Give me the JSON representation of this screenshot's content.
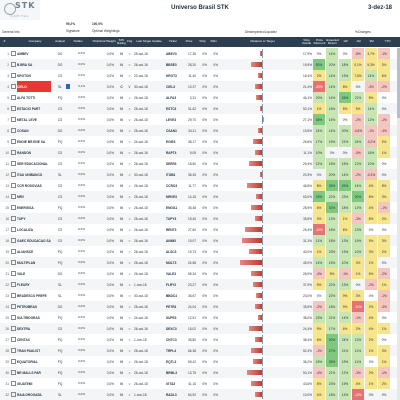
{
  "app": {
    "logo_text": "STK",
    "logo_sub": "CAPITAL",
    "title": "Universo Brasil STK",
    "date": "3-dez-18"
  },
  "scope": {
    "general_info": "General Info",
    "sig_pct": "99,2%",
    "sig_label": "Signature",
    "wt_pct": "100,0%",
    "wt_label": "Optimal Weightings",
    "comp_label": "Desempenho/Liquidez",
    "changes_label": "%Changes"
  },
  "columns": [
    "#",
    "",
    "Company",
    "Analyst",
    "%Alloc",
    "%Optimal Weight",
    "STK Rating",
    "Chg",
    "Last Target Update",
    "Ticker",
    "Price",
    "%Up",
    "%Dn",
    "",
    "Distance to Target",
    "%Up Upside",
    "Price Discount",
    "Expected Return",
    "1W",
    "1M",
    "3M",
    "YTD"
  ],
  "rows": [
    {
      "rank": "1",
      "company": "AMBEV",
      "analyst": "DG",
      "sign": "0,0%",
      "sign_frac": 0.0,
      "wt": "0,0%",
      "wt_frac": 0.0,
      "rating": "N",
      "chg": "=",
      "update": "25-out-18",
      "ticker": "ABEV3",
      "price": "17,35",
      "pct": "0%",
      "pct2": "0%",
      "bar": -0.05,
      "dist": "17,9%",
      "c1": "0%",
      "c2": "14%",
      "c3": "0%",
      "c4": "-8%",
      "c5": "3,7%",
      "c6": "-1%"
    },
    {
      "rank": "2",
      "company": "B.BRA SA",
      "analyst": "DG",
      "sign": "0,0%",
      "sign_frac": 0.0,
      "wt": "0,0%",
      "wt_frac": 0.0,
      "rating": "N",
      "chg": "=",
      "update": "26-out-18",
      "ticker": "BBSE3",
      "price": "28,20",
      "pct": "0%",
      "pct2": "0%",
      "bar": -0.3,
      "dist": "19,9%",
      "c1": "50%",
      "c2": "20%",
      "c3": "18%",
      "c4": "0,1%",
      "c5": "5,3%",
      "c6": "3%"
    },
    {
      "rank": "3",
      "company": "KROTON",
      "analyst": "CS",
      "sign": "0,0%",
      "sign_frac": 0.0,
      "wt": "0,0%",
      "wt_frac": 0.0,
      "rating": "N",
      "chg": "=",
      "update": "22-out-18",
      "ticker": "KROT3",
      "price": "11,40",
      "pct": "0%",
      "pct2": "0%",
      "bar": -0.1,
      "dist": "16,4%",
      "c1": "2%",
      "c2": "14%",
      "c3": "13%",
      "c4": "7,6%",
      "c5": "14%",
      "c6": "6%"
    },
    {
      "rank": "4",
      "company": "CIELO",
      "analyst": "SL",
      "sign": "3,1%",
      "sign_frac": 0.22,
      "wt": "0,0%",
      "wt_frac": 0.0,
      "rating": "C",
      "chg": "V",
      "update": "30-out-18",
      "ticker": "CIEL3",
      "price": "10,37",
      "pct": "0%",
      "pct2": "0%",
      "bar": -0.2,
      "dist": "21,4%",
      "c1": "-23%",
      "c2": "14%",
      "c3": "8%",
      "c4": "0%",
      "c5": "-3%",
      "c6": "-2%",
      "highlight": true
    },
    {
      "rank": "5",
      "company": "ALFA TOTTI",
      "analyst": "PQ",
      "sign": "0,0%",
      "sign_frac": 0.0,
      "wt": "0,0%",
      "wt_frac": 0.0,
      "rating": "N",
      "chg": "=",
      "update": "26-out-18",
      "ticker": "ALFA3",
      "price": "3,31",
      "pct": "0%",
      "pct2": "0%",
      "bar": -0.15,
      "dist": "46,1%",
      "c1": "20%",
      "c2": "14%",
      "c3": "26%",
      "c4": "21%",
      "c5": "8%",
      "c6": "0%"
    },
    {
      "rank": "6",
      "company": "ESTACIO PART",
      "analyst": "CS",
      "sign": "0,0%",
      "sign_frac": 0.0,
      "wt": "0,0%",
      "wt_frac": 0.0,
      "rating": "N",
      "chg": "=",
      "update": "26-out-18",
      "ticker": "ESTC3",
      "price": "31,62",
      "pct": "0%",
      "pct2": "0%",
      "bar": -0.05,
      "dist": "52,1%",
      "c1": "1%",
      "c2": "16%",
      "c3": "8%",
      "c4": "5%",
      "c5": "14%",
      "c6": "0%"
    },
    {
      "rank": "7",
      "company": "METAL LEVE",
      "analyst": "CS",
      "sign": "0,0%",
      "sign_frac": 0.0,
      "wt": "0,0%",
      "wt_frac": 0.0,
      "rating": "N",
      "chg": "=",
      "update": "26-out-18",
      "ticker": "LEVE3",
      "price": "29,70",
      "pct": "0%",
      "pct2": "0%",
      "bar": 0.05,
      "dist": "27,1%",
      "c1": "36%",
      "c2": "14%",
      "c3": "0%",
      "c4": "-2%",
      "c5": "12%",
      "c6": "-1%"
    },
    {
      "rank": "8",
      "company": "COSAN",
      "analyst": "DG",
      "sign": "0,0%",
      "sign_frac": 0.0,
      "wt": "0,0%",
      "wt_frac": 0.0,
      "rating": "N",
      "chg": "=",
      "update": "26-out-18",
      "ticker": "CSAN3",
      "price": "34,11",
      "pct": "0%",
      "pct2": "0%",
      "bar": -0.1,
      "dist": "19,5%",
      "c1": "24%",
      "c2": "14%",
      "c3": "20%",
      "c4": "-0,6%",
      "c5": "-1%",
      "c6": "-4%"
    },
    {
      "rank": "9",
      "company": "ENGIE BR ENE SA",
      "analyst": "PQ",
      "sign": "0,0%",
      "sign_frac": 0.0,
      "wt": "0,0%",
      "wt_frac": 0.0,
      "rating": "N",
      "chg": "=",
      "update": "24-out-18",
      "ticker": "EGIE3",
      "price": "38,17",
      "pct": "0%",
      "pct2": "0%",
      "bar": -0.25,
      "dist": "26,8%",
      "c1": "17%",
      "c2": "19%",
      "c3": "21%",
      "c4": "24%",
      "c5": "-0,2%",
      "c6": "2%"
    },
    {
      "rank": "10",
      "company": "RANDON",
      "analyst": "CS",
      "sign": "0,0%",
      "sign_frac": 0.0,
      "wt": "0,0%",
      "wt_frac": 0.0,
      "rating": "N",
      "chg": "=",
      "update": "26-out-18",
      "ticker": "RAPT4",
      "price": "9,05",
      "pct": "0%",
      "pct2": "0%",
      "bar": -0.2,
      "dist": "11,1%",
      "c1": "10%",
      "c2": "0%",
      "c3": "0%",
      "c4": "-5%",
      "c5": "16%",
      "c6": "1%"
    },
    {
      "rank": "11",
      "company": "SER EDUCACIONAL",
      "analyst": "CS",
      "sign": "0,0%",
      "sign_frac": 0.0,
      "wt": "0,0%",
      "wt_frac": 0.0,
      "rating": "N",
      "chg": "=",
      "update": "26-out-18",
      "ticker": "SEER3",
      "price": "18,60",
      "pct": "0%",
      "pct2": "0%",
      "bar": -0.35,
      "dist": "29,4%",
      "c1": "12%",
      "c2": "15%",
      "c3": "15%",
      "c4": "12%",
      "c5": "10%",
      "c6": "0%"
    },
    {
      "rank": "12",
      "company": "ITAU UNIBANCO",
      "analyst": "SL",
      "sign": "0,0%",
      "sign_frac": 0.0,
      "wt": "0,0%",
      "wt_frac": 0.0,
      "rating": "N",
      "chg": "=",
      "update": "30-out-18",
      "ticker": "ITUB4",
      "price": "36,45",
      "pct": "0%",
      "pct2": "0%",
      "bar": -0.05,
      "dist": "20,3%",
      "c1": "0%",
      "c2": "20%",
      "c3": "14%",
      "c4": "-2%",
      "c5": "-0,3%",
      "c6": "0%"
    },
    {
      "rank": "13",
      "company": "CCR RODOVIAS",
      "analyst": "CS",
      "sign": "0,0%",
      "sign_frac": 0.0,
      "wt": "0,0%",
      "wt_frac": 0.0,
      "rating": "N",
      "chg": "=",
      "update": "26-out-18",
      "ticker": "CCRO3",
      "price": "11,77",
      "pct": "0%",
      "pct2": "0%",
      "bar": -0.4,
      "dist": "46,8%",
      "c1": "8%",
      "c2": "26%",
      "c3": "25%",
      "c4": "14%",
      "c5": "4%",
      "c6": "8%"
    },
    {
      "rank": "14",
      "company": "MRV",
      "analyst": "CS",
      "sign": "0,0%",
      "sign_frac": 0.0,
      "wt": "0,0%",
      "wt_frac": 0.0,
      "rating": "N",
      "chg": "=",
      "update": "26-out-18",
      "ticker": "MRVE3",
      "price": "14,15",
      "pct": "0%",
      "pct2": "0%",
      "bar": -0.15,
      "dist": "63,0%",
      "c1": "25%",
      "c2": "22%",
      "c3": "23%",
      "c4": "30%",
      "c5": "8%",
      "c6": "3%"
    },
    {
      "rank": "15",
      "company": "ENERGISA",
      "analyst": "PQ",
      "sign": "0,0%",
      "sign_frac": 0.0,
      "wt": "0,0%",
      "wt_frac": 0.0,
      "rating": "N",
      "chg": "=",
      "update": "26-out-18",
      "ticker": "ENGI11",
      "price": "35,48",
      "pct": "0%",
      "pct2": "0%",
      "bar": -0.3,
      "dist": "28,9%",
      "c1": "6%",
      "c2": "31%",
      "c3": "18%",
      "c4": "12%",
      "c5": "4%",
      "c6": "-1%"
    },
    {
      "rank": "16",
      "company": "TUPY",
      "analyst": "CS",
      "sign": "0,0%",
      "sign_frac": 0.0,
      "wt": "0,0%",
      "wt_frac": 0.0,
      "rating": "N",
      "chg": "=",
      "update": "26-out-18",
      "ticker": "TUPY3",
      "price": "19,40",
      "pct": "0%",
      "pct2": "0%",
      "bar": -0.2,
      "dist": "35,5%",
      "c1": "3%",
      "c2": "13%",
      "c3": "1%",
      "c4": "-3%",
      "c5": "8%",
      "c6": "2%"
    },
    {
      "rank": "17",
      "company": "LOCALIZA",
      "analyst": "CS",
      "sign": "0,0%",
      "sign_frac": 0.0,
      "wt": "0,0%",
      "wt_frac": 0.0,
      "rating": "N",
      "chg": "=",
      "update": "26-out-18",
      "ticker": "RENT3",
      "price": "27,60",
      "pct": "0%",
      "pct2": "0%",
      "bar": -0.45,
      "dist": "25,4%",
      "c1": "-10%",
      "c2": "18%",
      "c3": "6%",
      "c4": "13%",
      "c5": "0%",
      "c6": "0%"
    },
    {
      "rank": "18",
      "company": "GAEC EDUCACAO SA",
      "analyst": "CS",
      "sign": "0,0%",
      "sign_frac": 0.0,
      "wt": "0,0%",
      "wt_frac": 0.0,
      "rating": "N",
      "chg": "=",
      "update": "26-out-18",
      "ticker": "ANIM3",
      "price": "19,07",
      "pct": "0%",
      "pct2": "0%",
      "bar": -0.55,
      "dist": "31,3%",
      "c1": "11%",
      "c2": "18%",
      "c3": "13%",
      "c4": "19%",
      "c5": "5%",
      "c6": "3%"
    },
    {
      "rank": "19",
      "company": "ALIANSCE",
      "analyst": "PQ",
      "sign": "0,0%",
      "sign_frac": 0.0,
      "wt": "0,0%",
      "wt_frac": 0.0,
      "rating": "N",
      "chg": "=",
      "update": "26-out-18",
      "ticker": "ALSC3",
      "price": "19,73",
      "pct": "0%",
      "pct2": "0%",
      "bar": -0.35,
      "dist": "40,0%",
      "c1": "1%",
      "c2": "23%",
      "c3": "13%",
      "c4": "10%",
      "c5": "3%",
      "c6": "2%"
    },
    {
      "rank": "20",
      "company": "MULTIPLAN",
      "analyst": "PQ",
      "sign": "0,0%",
      "sign_frac": 0.0,
      "wt": "0,0%",
      "wt_frac": 0.0,
      "rating": "N",
      "chg": "=",
      "update": "26-out-18",
      "ticker": "MULT3",
      "price": "24,58",
      "pct": "0%",
      "pct2": "0%",
      "bar": -0.6,
      "dist": "45,0%",
      "c1": "14%",
      "c2": "15%",
      "c3": "10%",
      "c4": "3%",
      "c5": "1%",
      "c6": "0%"
    },
    {
      "rank": "21",
      "company": "VALE",
      "analyst": "DG",
      "sign": "0,0%",
      "sign_frac": 0.0,
      "wt": "0,0%",
      "wt_frac": 0.0,
      "rating": "N",
      "chg": "=",
      "update": "26-out-18",
      "ticker": "VALE3",
      "price": "55,34",
      "pct": "0%",
      "pct2": "0%",
      "bar": -0.3,
      "dist": "28,9%",
      "c1": "-4%",
      "c2": "8%",
      "c3": "-1%",
      "c4": "1%",
      "c5": "6%",
      "c6": "-2%"
    },
    {
      "rank": "22",
      "company": "FLEURY",
      "analyst": "SL",
      "sign": "0,0%",
      "sign_frac": 0.0,
      "wt": "0,0%",
      "wt_frac": 0.0,
      "rating": "N",
      "chg": "=",
      "update": "1-nov-18",
      "ticker": "FLRY3",
      "price": "23,27",
      "pct": "0%",
      "pct2": "0%",
      "bar": -0.25,
      "dist": "37,9%",
      "c1": "9%",
      "c2": "22%",
      "c3": "13%",
      "c4": "0%",
      "c5": "-2%",
      "c6": "1%"
    },
    {
      "rank": "23",
      "company": "BRADESCO PREFE",
      "analyst": "SL",
      "sign": "0,0%",
      "sign_frac": 0.0,
      "wt": "0,0%",
      "wt_frac": 0.0,
      "rating": "N",
      "chg": "=",
      "update": "30-out-18",
      "ticker": "BBDC4",
      "price": "36,67",
      "pct": "0%",
      "pct2": "0%",
      "bar": -0.15,
      "dist": "23,0%",
      "c1": "0%",
      "c2": "22%",
      "c3": "9%",
      "c4": "3%",
      "c5": "0%",
      "c6": "-1%"
    },
    {
      "rank": "24",
      "company": "PETROBRAS",
      "analyst": "DG",
      "sign": "0,0%",
      "sign_frac": 0.0,
      "wt": "0,0%",
      "wt_frac": 0.0,
      "rating": "N",
      "chg": "=",
      "update": "26-out-18",
      "ticker": "PETR4",
      "price": "24,04",
      "pct": "0%",
      "pct2": "0%",
      "bar": -0.2,
      "dist": "35,5%",
      "c1": "-2%",
      "c2": "18%",
      "c3": "9%",
      "c4": "-11%",
      "c5": "2%",
      "c6": "-3%"
    },
    {
      "rank": "25",
      "company": "SULTRIDORAS",
      "analyst": "PQ",
      "sign": "0,0%",
      "sign_frac": 0.0,
      "wt": "0,0%",
      "wt_frac": 0.0,
      "rating": "N",
      "chg": "=",
      "update": "24-out-18",
      "ticker": "SUPE3",
      "price": "12,51",
      "pct": "0%",
      "pct2": "0%",
      "bar": -0.1,
      "dist": "38,0%",
      "c1": "23%",
      "c2": "21%",
      "c3": "14%",
      "c4": "-1%",
      "c5": "4%",
      "c6": "0%"
    },
    {
      "rank": "26",
      "company": "DEXTRA",
      "analyst": "CS",
      "sign": "0,0%",
      "sign_frac": 0.0,
      "wt": "0,0%",
      "wt_frac": 0.0,
      "rating": "N",
      "chg": "=",
      "update": "26-out-18",
      "ticker": "DEXC3",
      "price": "15,02",
      "pct": "0%",
      "pct2": "0%",
      "bar": -0.35,
      "dist": "24,4%",
      "c1": "9%",
      "c2": "17%",
      "c3": "6%",
      "c4": "2%",
      "c5": "4%",
      "c6": "1%"
    },
    {
      "rank": "27",
      "company": "CENTAC",
      "analyst": "PQ",
      "sign": "0,0%",
      "sign_frac": 0.0,
      "wt": "0,0%",
      "wt_frac": 0.0,
      "rating": "N",
      "chg": "=",
      "update": "1-nov-18",
      "ticker": "CNTC3",
      "price": "35,80",
      "pct": "0%",
      "pct2": "0%",
      "bar": -0.2,
      "dist": "38,4%",
      "c1": "6%",
      "c2": "30%",
      "c3": "24%",
      "c4": "13%",
      "c5": "2%",
      "c6": "0%"
    },
    {
      "rank": "28",
      "company": "TRAN PAULIST",
      "analyst": "PQ",
      "sign": "0,0%",
      "sign_frac": 0.0,
      "wt": "0,0%",
      "wt_frac": 0.0,
      "rating": "N",
      "chg": "=",
      "update": "26-out-18",
      "ticker": "TRPL4",
      "price": "66,38",
      "pct": "0%",
      "pct2": "0%",
      "bar": -0.3,
      "dist": "52,3%",
      "c1": "-1%",
      "c2": "27%",
      "c3": "21%",
      "c4": "11%",
      "c5": "1%",
      "c6": "3%"
    },
    {
      "rank": "29",
      "company": "EQUATORIAL",
      "analyst": "PQ",
      "sign": "0,0%",
      "sign_frac": 0.0,
      "wt": "0,0%",
      "wt_frac": 0.0,
      "rating": "N",
      "chg": "=",
      "update": "26-out-18",
      "ticker": "EQTL3",
      "price": "69,42",
      "pct": "0%",
      "pct2": "0%",
      "bar": -0.25,
      "dist": "36,2%",
      "c1": "15%",
      "c2": "26%",
      "c3": "19%",
      "c4": "11%",
      "c5": "0%",
      "c6": "1%"
    },
    {
      "rank": "30",
      "company": "BR MALLS PAR",
      "analyst": "PQ",
      "sign": "0,0%",
      "sign_frac": 0.0,
      "wt": "0,0%",
      "wt_frac": 0.0,
      "rating": "N",
      "chg": "=",
      "update": "26-out-18",
      "ticker": "BRML3",
      "price": "13,75",
      "pct": "0%",
      "pct2": "0%",
      "bar": -0.4,
      "dist": "50,1%",
      "c1": "-4%",
      "c2": "21%",
      "c3": "12%",
      "c4": "-3%",
      "c5": "2%",
      "c6": "-1%"
    },
    {
      "rank": "31",
      "company": "IGUATEMI",
      "analyst": "PQ",
      "sign": "0,0%",
      "sign_frac": 0.0,
      "wt": "0,0%",
      "wt_frac": 0.0,
      "rating": "N",
      "chg": "=",
      "update": "26-out-18",
      "ticker": "IGTA3",
      "price": "41,16",
      "pct": "0%",
      "pct2": "0%",
      "bar": -0.3,
      "dist": "43,6%",
      "c1": "8%",
      "c2": "23%",
      "c3": "19%",
      "c4": "4%",
      "c5": "1%",
      "c6": "2%"
    },
    {
      "rank": "32",
      "company": "RAIA DROGASIL",
      "analyst": "SL",
      "sign": "0,0%",
      "sign_frac": 0.0,
      "wt": "0,0%",
      "wt_frac": 0.0,
      "rating": "N",
      "chg": "=",
      "update": "1-nov-18",
      "ticker": "RADL3",
      "price": "64,92",
      "pct": "0%",
      "pct2": "0%",
      "bar": -0.2,
      "dist": "10,0%",
      "c1": "4%",
      "c2": "18%",
      "c3": "13%",
      "c4": "-12%",
      "c5": "0%",
      "c6": "0%"
    }
  ],
  "colors": {
    "header_bg": "#2c3e50",
    "neg_bar": "#c0392b",
    "pos_bar": "#3c6fb6",
    "highlight": "#e53935"
  }
}
